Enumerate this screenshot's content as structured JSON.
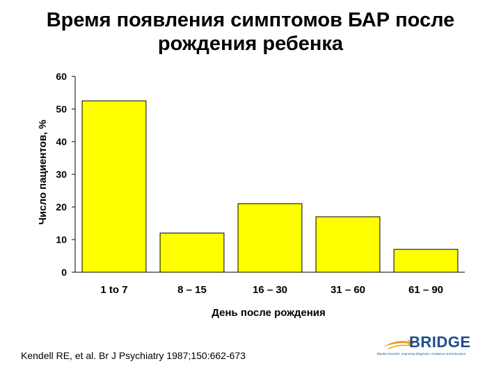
{
  "title": {
    "line1": "Время появления симптомов БАР после",
    "line2": "рождения ребенка"
  },
  "citation": "Kendell RE, et al. Br J Psychiatry 1987;150:662-673",
  "logo": {
    "name": "BRIDGE",
    "tagline": "Bipolar Disorder: Improving Diagnosis, Guidance and Education"
  },
  "chart_data": {
    "type": "bar",
    "categories": [
      "1 to 7",
      "8 – 15",
      "16 – 30",
      "31 – 60",
      "61 – 90"
    ],
    "values": [
      52.5,
      12,
      21,
      17,
      7
    ],
    "xlabel": "День после рождения",
    "ylabel": "Число пациентов, %",
    "ylim": [
      0,
      60
    ],
    "yticks": [
      0,
      10,
      20,
      30,
      40,
      50,
      60
    ],
    "grid": false,
    "legend": "none",
    "bar_color": "#ffff00",
    "bar_edge_color": "#000000"
  }
}
